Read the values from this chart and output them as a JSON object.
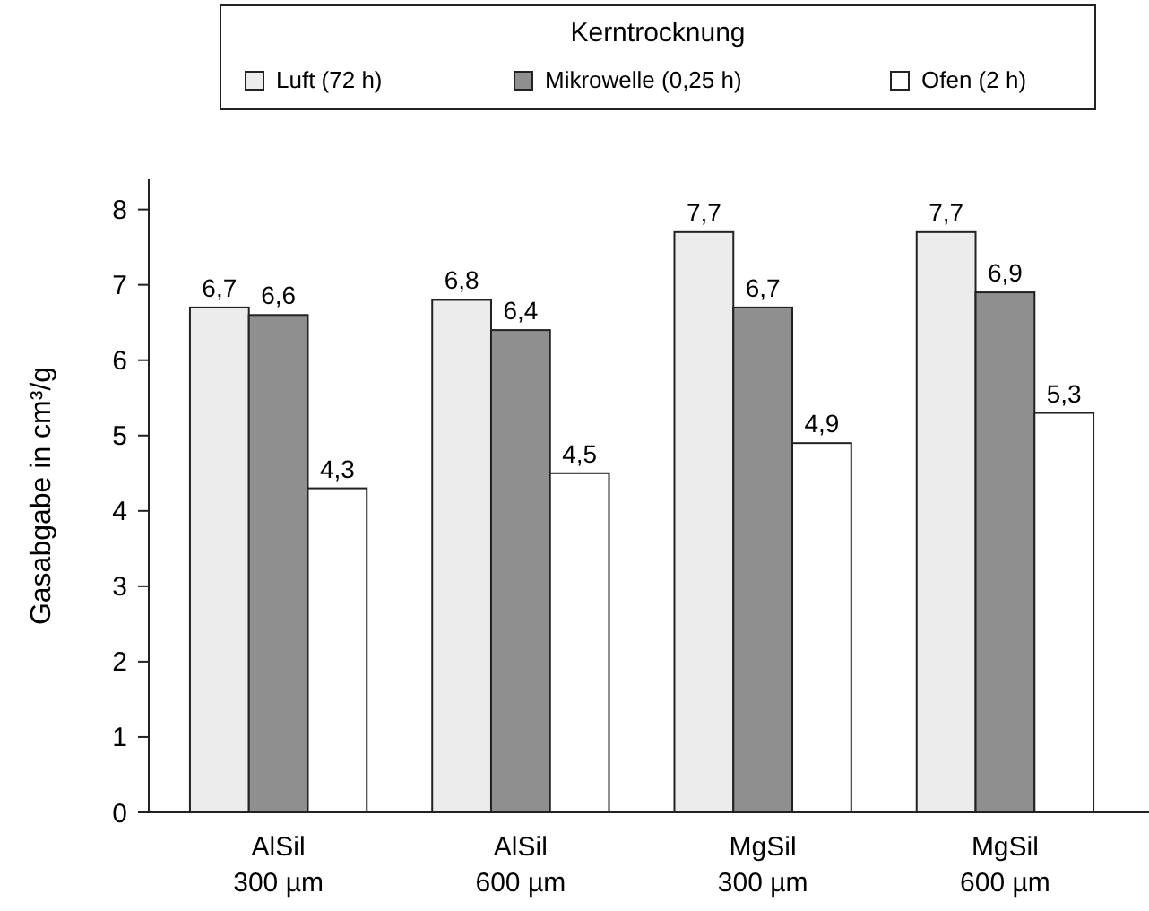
{
  "chart_data": {
    "type": "bar",
    "ylabel": "Gasabgabe in cm³/g",
    "legend_title": "Kerntrocknung",
    "legend": "top",
    "categories": [
      "AlSil\n300 µm",
      "AlSil\n600 µm",
      "MgSil\n300 µm",
      "MgSil\n600 µm"
    ],
    "ylim": [
      0,
      8.4
    ],
    "yticks": [
      0,
      1,
      2,
      3,
      4,
      5,
      6,
      7,
      8
    ],
    "grid": false,
    "series": [
      {
        "name": "Luft (72 h)",
        "color": "#ececec",
        "values": [
          6.7,
          6.8,
          7.7,
          7.7
        ],
        "value_labels": [
          "6,7",
          "6,8",
          "7,7",
          "7,7"
        ]
      },
      {
        "name": "Mikrowelle (0,25 h)",
        "color": "#8f8f8f",
        "values": [
          6.6,
          6.4,
          6.7,
          6.9
        ],
        "value_labels": [
          "6,6",
          "6,4",
          "6,7",
          "6,9"
        ]
      },
      {
        "name": "Ofen (2 h)",
        "color": "#ffffff",
        "values": [
          4.3,
          4.5,
          4.9,
          5.3
        ],
        "value_labels": [
          "4,3",
          "4,5",
          "4,9",
          "5,3"
        ]
      }
    ]
  }
}
